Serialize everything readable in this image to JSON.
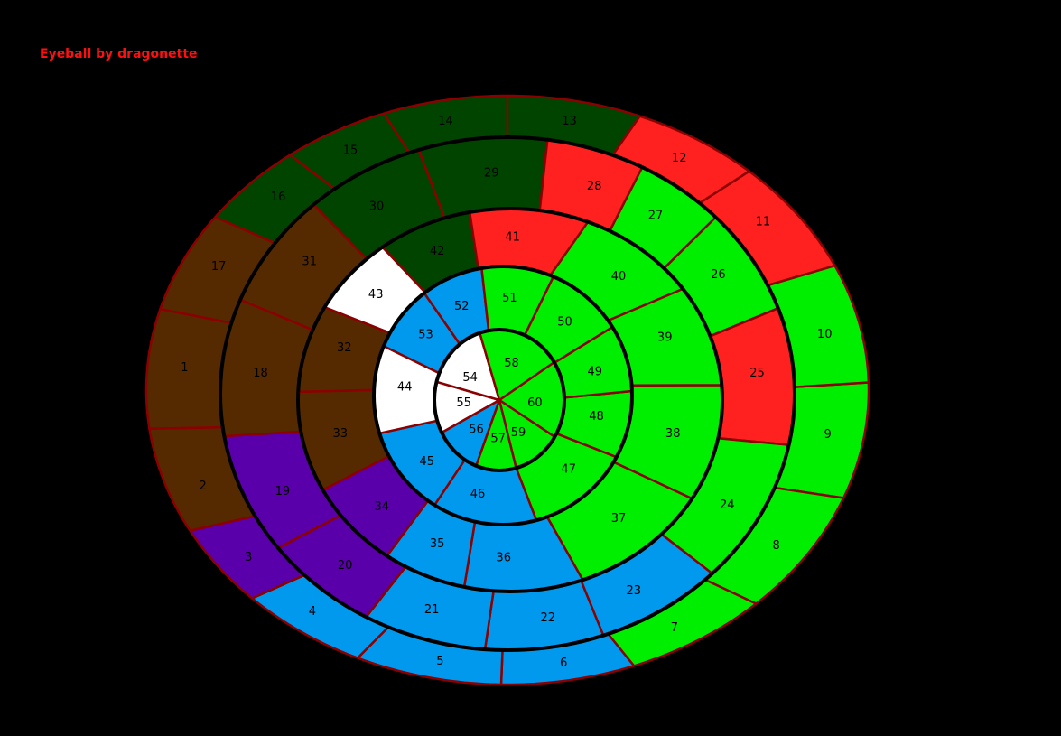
{
  "title": "Eyeball by dragonette",
  "territories": [
    {
      "label": "1",
      "color": "#552a00"
    },
    {
      "label": "2",
      "color": "#552a00"
    },
    {
      "label": "3",
      "color": "#5a00aa"
    },
    {
      "label": "4",
      "color": "#0099ee"
    },
    {
      "label": "5",
      "color": "#0099ee"
    },
    {
      "label": "6",
      "color": "#0099ee"
    },
    {
      "label": "7",
      "color": "#00ee00"
    },
    {
      "label": "8",
      "color": "#00ee00"
    },
    {
      "label": "9",
      "color": "#00ee00"
    },
    {
      "label": "10",
      "color": "#00ee00"
    },
    {
      "label": "11",
      "color": "#ff2020"
    },
    {
      "label": "12",
      "color": "#ff2020"
    },
    {
      "label": "13",
      "color": "#004400"
    },
    {
      "label": "14",
      "color": "#004400"
    },
    {
      "label": "15",
      "color": "#004400"
    },
    {
      "label": "16",
      "color": "#004400"
    },
    {
      "label": "17",
      "color": "#552a00"
    },
    {
      "label": "18",
      "color": "#552a00"
    },
    {
      "label": "19",
      "color": "#5a00aa"
    },
    {
      "label": "20",
      "color": "#5a00aa"
    },
    {
      "label": "21",
      "color": "#0099ee"
    },
    {
      "label": "22",
      "color": "#0099ee"
    },
    {
      "label": "23",
      "color": "#0099ee"
    },
    {
      "label": "24",
      "color": "#00ee00"
    },
    {
      "label": "25",
      "color": "#ff2020"
    },
    {
      "label": "26",
      "color": "#00ee00"
    },
    {
      "label": "27",
      "color": "#00ee00"
    },
    {
      "label": "28",
      "color": "#ff2020"
    },
    {
      "label": "29",
      "color": "#004400"
    },
    {
      "label": "30",
      "color": "#004400"
    },
    {
      "label": "31",
      "color": "#552a00"
    },
    {
      "label": "32",
      "color": "#552a00"
    },
    {
      "label": "33",
      "color": "#552a00"
    },
    {
      "label": "34",
      "color": "#5a00aa"
    },
    {
      "label": "35",
      "color": "#0099ee"
    },
    {
      "label": "36",
      "color": "#0099ee"
    },
    {
      "label": "37",
      "color": "#00ee00"
    },
    {
      "label": "38",
      "color": "#00ee00"
    },
    {
      "label": "39",
      "color": "#00ee00"
    },
    {
      "label": "40",
      "color": "#00ee00"
    },
    {
      "label": "41",
      "color": "#ff2020"
    },
    {
      "label": "42",
      "color": "#004400"
    },
    {
      "label": "43",
      "color": "#ffffff"
    },
    {
      "label": "44",
      "color": "#ffffff"
    },
    {
      "label": "45",
      "color": "#0099ee"
    },
    {
      "label": "46",
      "color": "#0099ee"
    },
    {
      "label": "47",
      "color": "#00ee00"
    },
    {
      "label": "48",
      "color": "#00ee00"
    },
    {
      "label": "49",
      "color": "#00ee00"
    },
    {
      "label": "50",
      "color": "#00ee00"
    },
    {
      "label": "51",
      "color": "#00ee00"
    },
    {
      "label": "52",
      "color": "#0099ee"
    },
    {
      "label": "53",
      "color": "#0099ee"
    },
    {
      "label": "54",
      "color": "#ffffff"
    },
    {
      "label": "55",
      "color": "#ffffff"
    },
    {
      "label": "56",
      "color": "#0099ee"
    },
    {
      "label": "57",
      "color": "#00ee00"
    },
    {
      "label": "58",
      "color": "#00ee00"
    },
    {
      "label": "59",
      "color": "#00ee00"
    },
    {
      "label": "60",
      "color": "#00ee00"
    }
  ]
}
